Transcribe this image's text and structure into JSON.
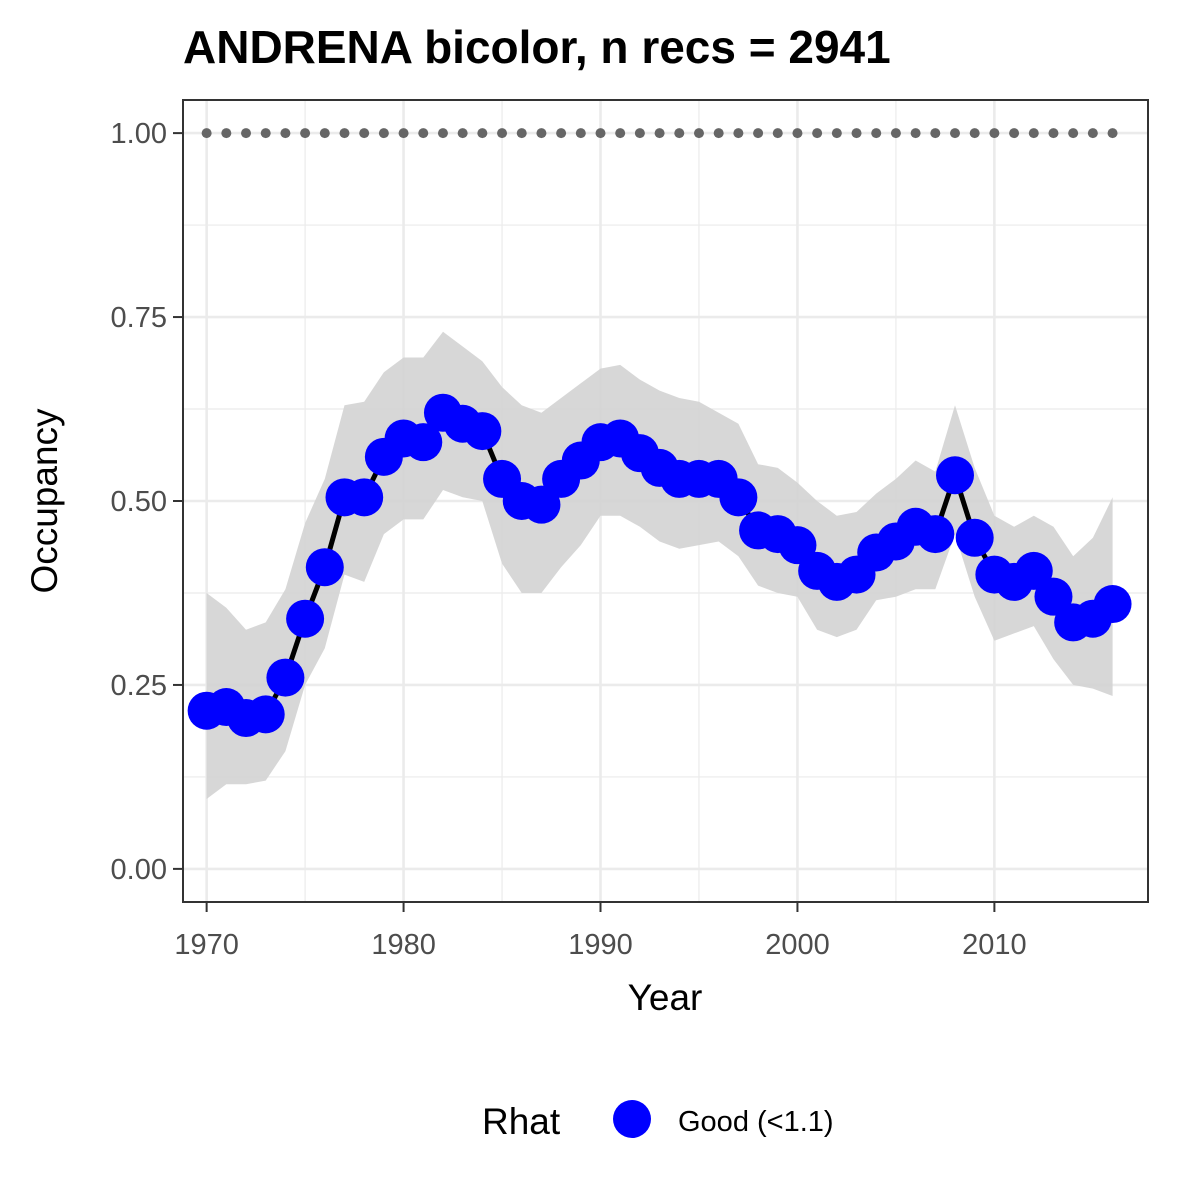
{
  "chart_data": {
    "type": "line",
    "title": "ANDRENA bicolor, n recs = 2941",
    "xlabel": "Year",
    "ylabel": "Occupancy",
    "xlim": [
      1968.8,
      2017.8
    ],
    "ylim": [
      -0.045,
      1.045
    ],
    "x_ticks": [
      1970,
      1980,
      1990,
      2000,
      2010
    ],
    "x_tick_labels": [
      "1970",
      "1980",
      "1990",
      "2000",
      "2010"
    ],
    "y_ticks": [
      0,
      0.25,
      0.5,
      0.75,
      1.0
    ],
    "y_tick_labels": [
      "0.00",
      "0.25",
      "0.50",
      "0.75",
      "1.00"
    ],
    "grid": true,
    "legend": {
      "position": "bottom",
      "title": "Rhat",
      "entries": [
        {
          "label": "Good (<1.1)",
          "color": "#0000ff"
        }
      ]
    },
    "colors": {
      "points": "#0000ff",
      "line": "#000000",
      "ribbon": "#d3d3d3",
      "reference_dots": "#666666"
    },
    "x": [
      1970,
      1971,
      1972,
      1973,
      1974,
      1975,
      1976,
      1977,
      1978,
      1979,
      1980,
      1981,
      1982,
      1983,
      1984,
      1985,
      1986,
      1987,
      1988,
      1989,
      1990,
      1991,
      1992,
      1993,
      1994,
      1995,
      1996,
      1997,
      1998,
      1999,
      2000,
      2001,
      2002,
      2003,
      2004,
      2005,
      2006,
      2007,
      2008,
      2009,
      2010,
      2011,
      2012,
      2013,
      2014,
      2015,
      2016
    ],
    "series": [
      {
        "values": [
          0.215,
          0.22,
          0.205,
          0.21,
          0.26,
          0.34,
          0.41,
          0.505,
          0.505,
          0.56,
          0.585,
          0.58,
          0.62,
          0.605,
          0.595,
          0.53,
          0.5,
          0.495,
          0.53,
          0.555,
          0.58,
          0.585,
          0.565,
          0.545,
          0.53,
          0.53,
          0.53,
          0.505,
          0.46,
          0.455,
          0.44,
          0.405,
          0.39,
          0.4,
          0.43,
          0.445,
          0.465,
          0.455,
          0.535,
          0.45,
          0.4,
          0.39,
          0.405,
          0.37,
          0.335,
          0.34,
          0.36
        ],
        "lower": [
          0.095,
          0.115,
          0.115,
          0.12,
          0.16,
          0.25,
          0.3,
          0.4,
          0.39,
          0.455,
          0.475,
          0.475,
          0.515,
          0.505,
          0.5,
          0.415,
          0.375,
          0.375,
          0.41,
          0.44,
          0.48,
          0.48,
          0.465,
          0.445,
          0.435,
          0.44,
          0.445,
          0.425,
          0.385,
          0.375,
          0.37,
          0.325,
          0.315,
          0.325,
          0.365,
          0.37,
          0.38,
          0.38,
          0.455,
          0.37,
          0.31,
          0.32,
          0.33,
          0.285,
          0.25,
          0.245,
          0.235
        ],
        "upper": [
          0.375,
          0.355,
          0.325,
          0.335,
          0.38,
          0.47,
          0.53,
          0.63,
          0.635,
          0.675,
          0.695,
          0.695,
          0.73,
          0.71,
          0.69,
          0.655,
          0.63,
          0.62,
          0.64,
          0.66,
          0.68,
          0.685,
          0.665,
          0.65,
          0.64,
          0.635,
          0.62,
          0.605,
          0.55,
          0.545,
          0.525,
          0.5,
          0.48,
          0.485,
          0.51,
          0.53,
          0.555,
          0.54,
          0.63,
          0.545,
          0.48,
          0.465,
          0.48,
          0.465,
          0.425,
          0.45,
          0.505
        ]
      }
    ],
    "reference_line": {
      "y": 1.0,
      "style": "dotted"
    }
  }
}
